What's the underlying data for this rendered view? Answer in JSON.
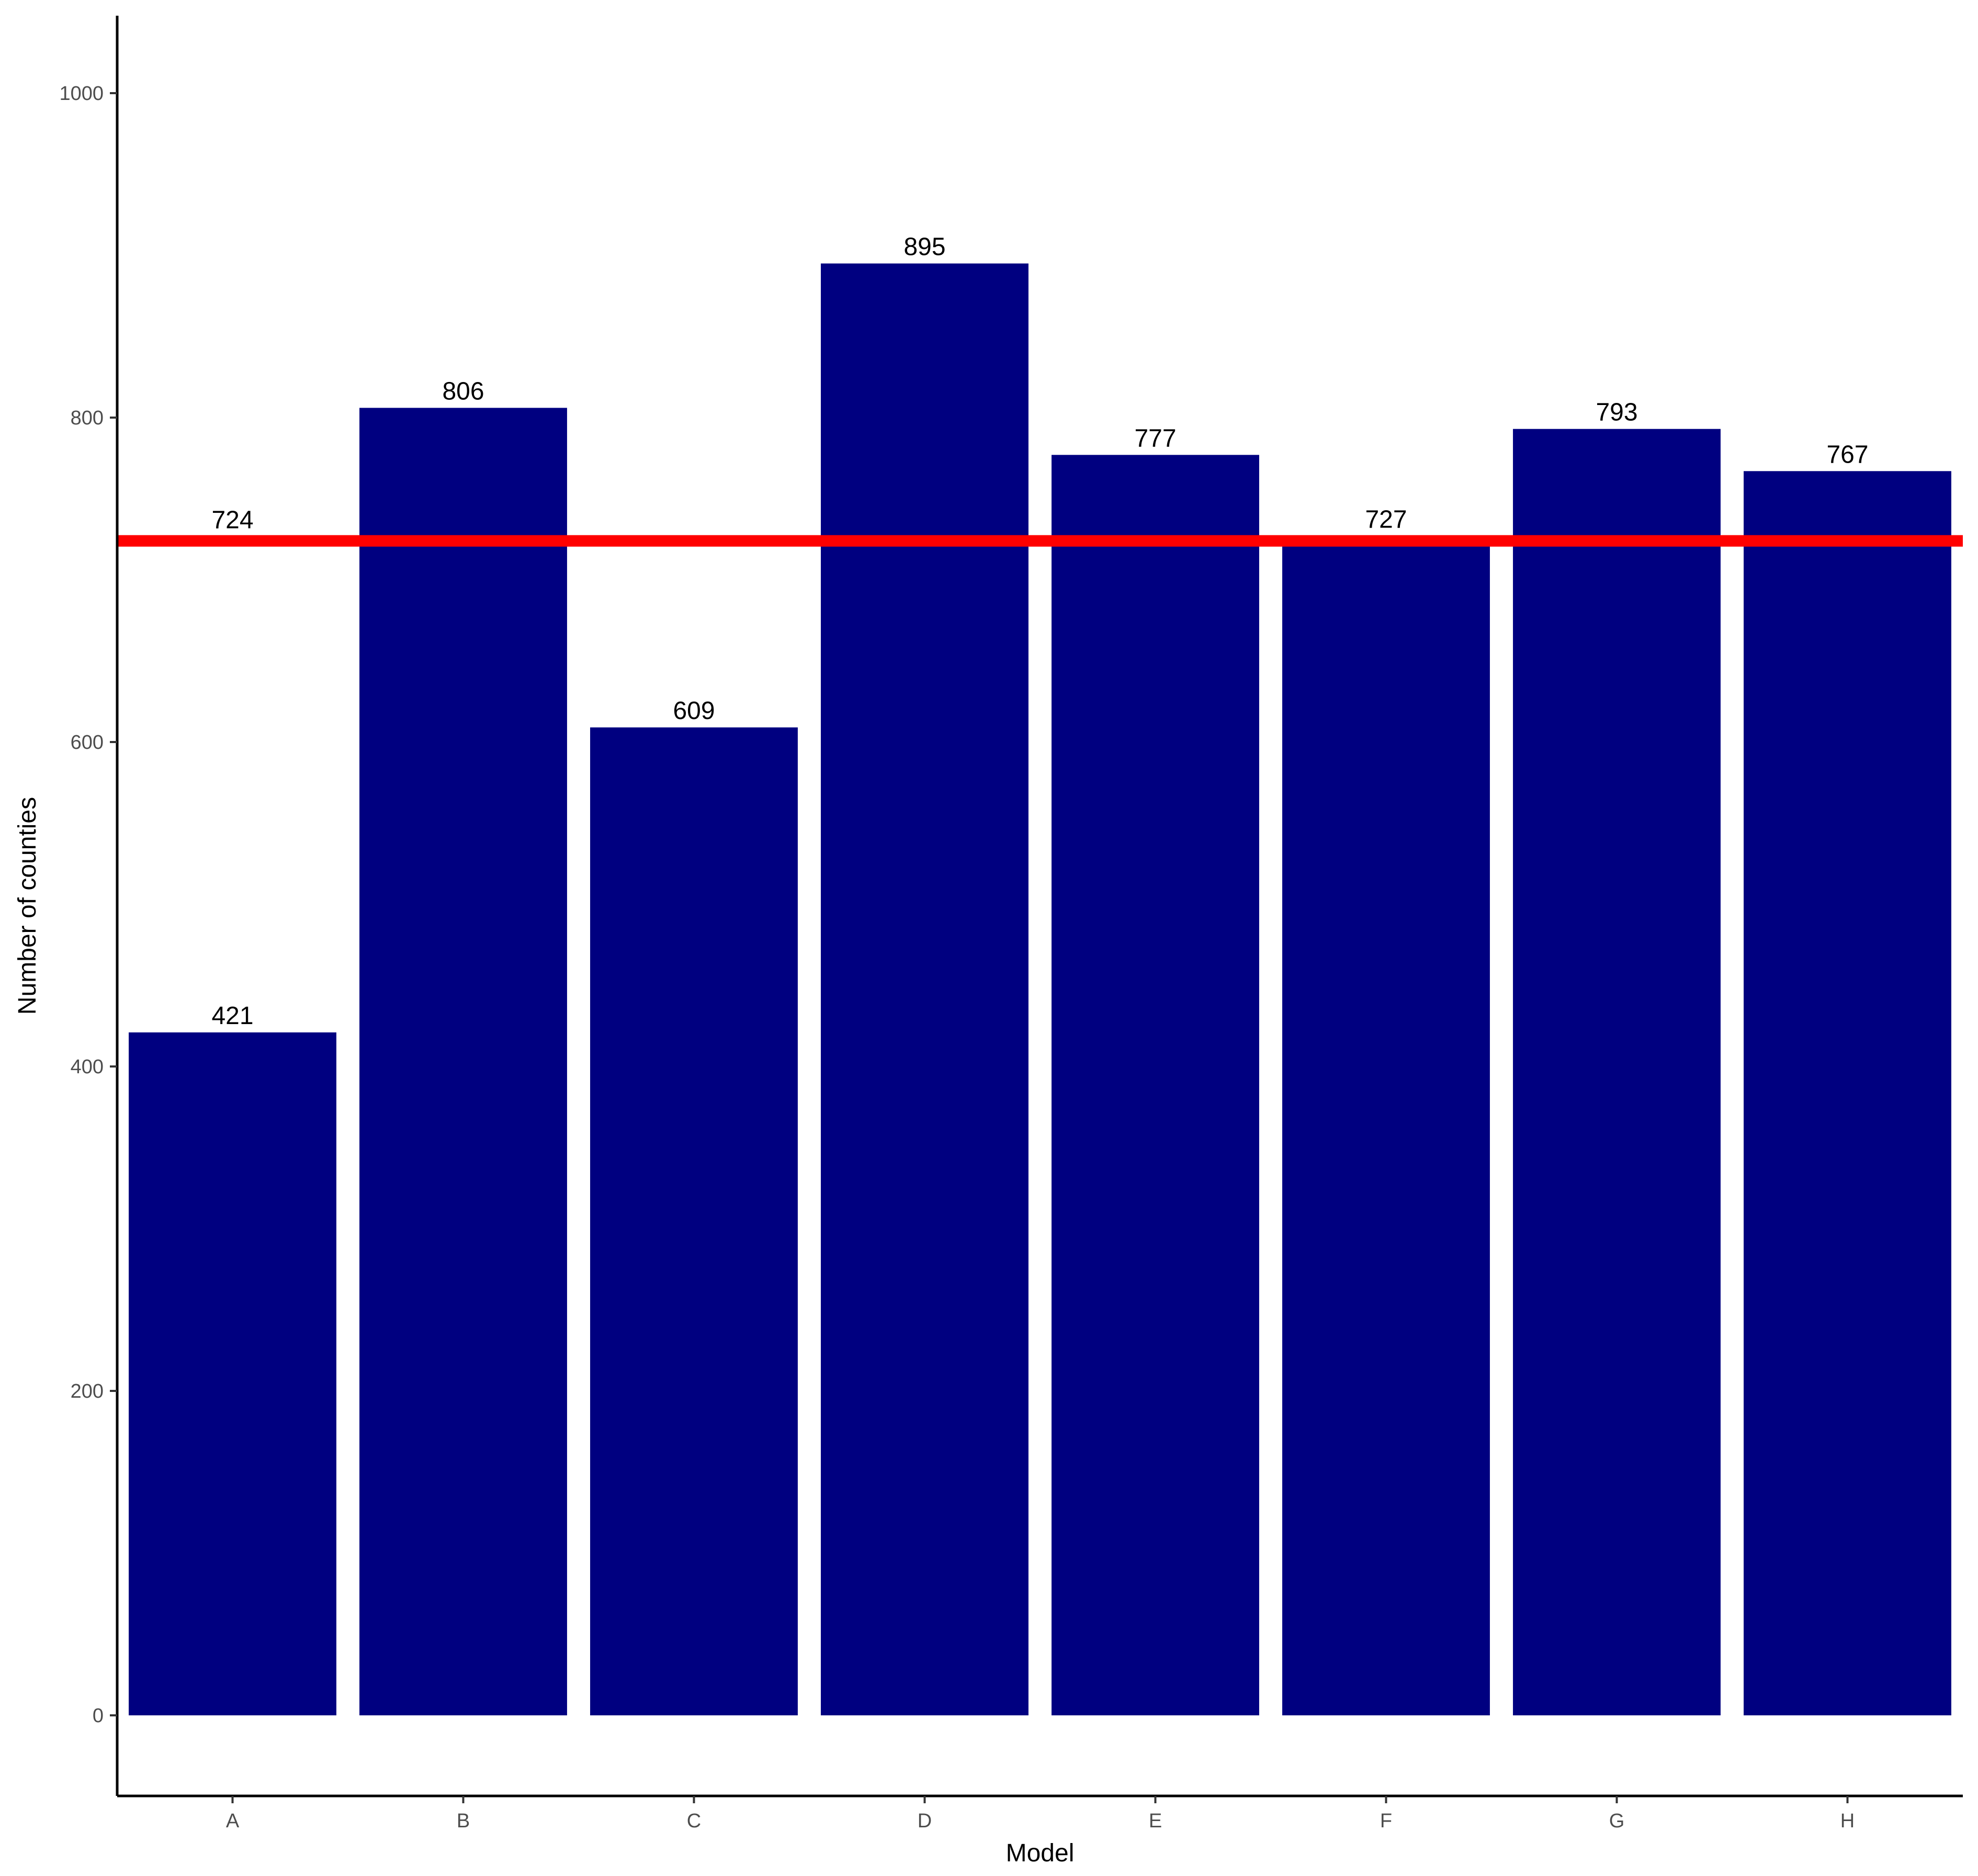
{
  "chart_data": {
    "type": "bar",
    "categories": [
      "A",
      "B",
      "C",
      "D",
      "E",
      "F",
      "G",
      "H"
    ],
    "values": [
      421,
      806,
      609,
      895,
      777,
      727,
      793,
      767
    ],
    "data_labels": [
      "421",
      "806",
      "609",
      "895",
      "777",
      "727",
      "793",
      "767"
    ],
    "xlabel": "Model",
    "ylabel": "Number of counties",
    "ylim": [
      -50,
      1050
    ],
    "yticks": [
      0,
      200,
      400,
      600,
      800,
      1000
    ],
    "ytick_labels": [
      "0",
      "200",
      "400",
      "600",
      "800",
      "1000"
    ],
    "reference_line": {
      "value": 724,
      "label": "724",
      "color": "#ff0000"
    },
    "bar_color": "#000080",
    "grid": false,
    "legend": "none"
  }
}
